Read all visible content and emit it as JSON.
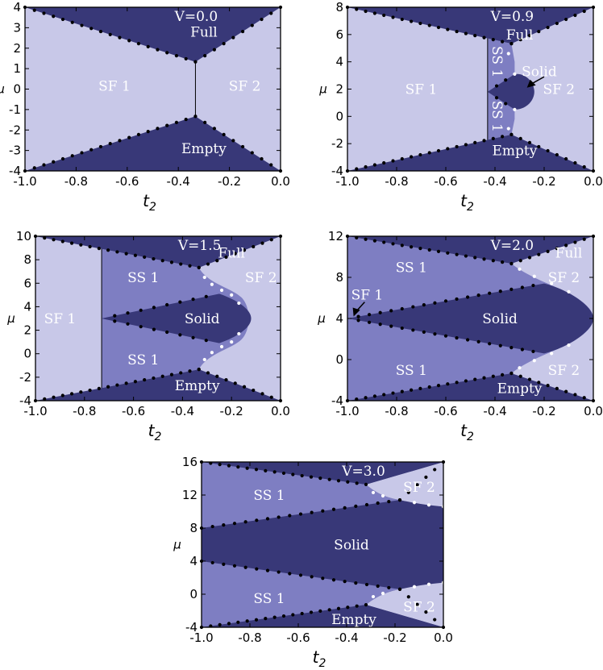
{
  "colors": {
    "dark": "#383878",
    "mid": "#7e7ec2",
    "light": "#c8c8e8",
    "frame": "#000000"
  },
  "chart_data": [
    {
      "type": "area",
      "title": "V=0.0",
      "xlabel": "t2",
      "ylabel": "μ",
      "xlim": [
        -1.0,
        0.0
      ],
      "ylim": [
        -4,
        4
      ],
      "xticks": [
        "-1.0",
        "-0.8",
        "-0.6",
        "-0.4",
        "-0.2",
        "0.0"
      ],
      "yticks": [
        "-4",
        "-3",
        "-2",
        "-1",
        "0",
        "1",
        "2",
        "3",
        "4"
      ],
      "labels": [
        {
          "text": "Full",
          "x": -0.3,
          "y": 2.8
        },
        {
          "text": "SF 1",
          "x": -0.65,
          "y": 0.15
        },
        {
          "text": "SF 2",
          "x": -0.14,
          "y": 0.15
        },
        {
          "text": "Empty",
          "x": -0.3,
          "y": -2.9
        }
      ],
      "upper_boundary": [
        [
          -1.0,
          4.0
        ],
        [
          -0.333,
          1.333
        ],
        [
          0.0,
          4.0
        ]
      ],
      "lower_boundary": [
        [
          -1.0,
          -4.0
        ],
        [
          -0.333,
          -1.333
        ],
        [
          0.0,
          -4.0
        ]
      ],
      "vertical_line": {
        "x": -0.333,
        "y": [
          -1.333,
          1.333
        ]
      }
    },
    {
      "type": "area",
      "title": "V=0.9",
      "xlabel": "t2",
      "ylabel": "μ",
      "xlim": [
        -1.0,
        0.0
      ],
      "ylim": [
        -4,
        8
      ],
      "xticks": [
        "-1.0",
        "-0.8",
        "-0.6",
        "-0.4",
        "-0.2",
        "0.0"
      ],
      "yticks": [
        "-4",
        "-2",
        "0",
        "2",
        "4",
        "6",
        "8"
      ],
      "labels": [
        {
          "text": "Full",
          "x": -0.3,
          "y": 6.0
        },
        {
          "text": "SF 1",
          "x": -0.7,
          "y": 2.0
        },
        {
          "text": "SF 2",
          "x": -0.14,
          "y": 2.0
        },
        {
          "text": "Solid",
          "x": -0.22,
          "y": 3.3
        },
        {
          "text": "Empty",
          "x": -0.32,
          "y": -2.5
        },
        {
          "text": "SS 1",
          "x": -0.39,
          "y": 4.0
        },
        {
          "text": "SS 1",
          "x": -0.39,
          "y": 0.0
        }
      ],
      "upper_boundary": [
        [
          -1.0,
          8.0
        ],
        [
          -0.333,
          5.333
        ],
        [
          0.0,
          8.0
        ]
      ],
      "lower_boundary": [
        [
          -1.0,
          -4.0
        ],
        [
          -0.333,
          -1.333
        ],
        [
          0.0,
          -4.0
        ]
      ],
      "ss_region_x": [
        -0.43,
        -0.35
      ],
      "solid_tip": [
        -0.25,
        1.8
      ]
    },
    {
      "type": "area",
      "title": "V=1.5",
      "xlabel": "t2",
      "ylabel": "μ",
      "xlim": [
        -1.0,
        0.0
      ],
      "ylim": [
        -4,
        10
      ],
      "xticks": [
        "-1.0",
        "-0.8",
        "-0.6",
        "-0.4",
        "-0.2",
        "0.0"
      ],
      "yticks": [
        "-4",
        "-2",
        "0",
        "2",
        "4",
        "6",
        "8",
        "10"
      ],
      "labels": [
        {
          "text": "Full",
          "x": -0.2,
          "y": 8.6
        },
        {
          "text": "SF 1",
          "x": -0.9,
          "y": 3.0
        },
        {
          "text": "SF 2",
          "x": -0.08,
          "y": 6.5
        },
        {
          "text": "SS 1",
          "x": -0.56,
          "y": 6.5
        },
        {
          "text": "Solid",
          "x": -0.32,
          "y": 3.0
        },
        {
          "text": "SS 1",
          "x": -0.56,
          "y": -0.5
        },
        {
          "text": "Empty",
          "x": -0.34,
          "y": -2.7
        }
      ],
      "ss_start_x": -0.73,
      "solid_tip": [
        -0.12,
        3.0
      ]
    },
    {
      "type": "area",
      "title": "V=2.0",
      "xlabel": "t2",
      "ylabel": "μ",
      "xlim": [
        -1.0,
        0.0
      ],
      "ylim": [
        -4,
        12
      ],
      "xticks": [
        "-1.0",
        "-0.8",
        "-0.6",
        "-0.4",
        "-0.2",
        "0.0"
      ],
      "yticks": [
        "-4",
        "0",
        "4",
        "8",
        "12"
      ],
      "labels": [
        {
          "text": "Full",
          "x": -0.1,
          "y": 10.4
        },
        {
          "text": "SS 1",
          "x": -0.74,
          "y": 9.0
        },
        {
          "text": "SF 2",
          "x": -0.12,
          "y": 8.0
        },
        {
          "text": "SF 1",
          "x": -0.92,
          "y": 6.3
        },
        {
          "text": "Solid",
          "x": -0.38,
          "y": 4.0
        },
        {
          "text": "SS 1",
          "x": -0.74,
          "y": -1.0
        },
        {
          "text": "SF 2",
          "x": -0.12,
          "y": -1.0
        },
        {
          "text": "Empty",
          "x": -0.3,
          "y": -2.8
        }
      ]
    },
    {
      "type": "area",
      "title": "V=3.0",
      "xlabel": "t2",
      "ylabel": "μ",
      "xlim": [
        -1.0,
        0.0
      ],
      "ylim": [
        -4,
        16
      ],
      "xticks": [
        "-1.0",
        "-0.8",
        "-0.6",
        "-0.4",
        "-0.2",
        "0.0"
      ],
      "yticks": [
        "-4",
        "0",
        "4",
        "8",
        "12",
        "16"
      ],
      "labels": [
        {
          "text": "SS 1",
          "x": -0.72,
          "y": 12.0
        },
        {
          "text": "SF 2",
          "x": -0.1,
          "y": 13.0
        },
        {
          "text": "Solid",
          "x": -0.38,
          "y": 6.0
        },
        {
          "text": "SS 1",
          "x": -0.72,
          "y": -0.5
        },
        {
          "text": "SF 2",
          "x": -0.1,
          "y": -1.5
        },
        {
          "text": "Empty",
          "x": -0.37,
          "y": -3.0
        }
      ]
    }
  ]
}
